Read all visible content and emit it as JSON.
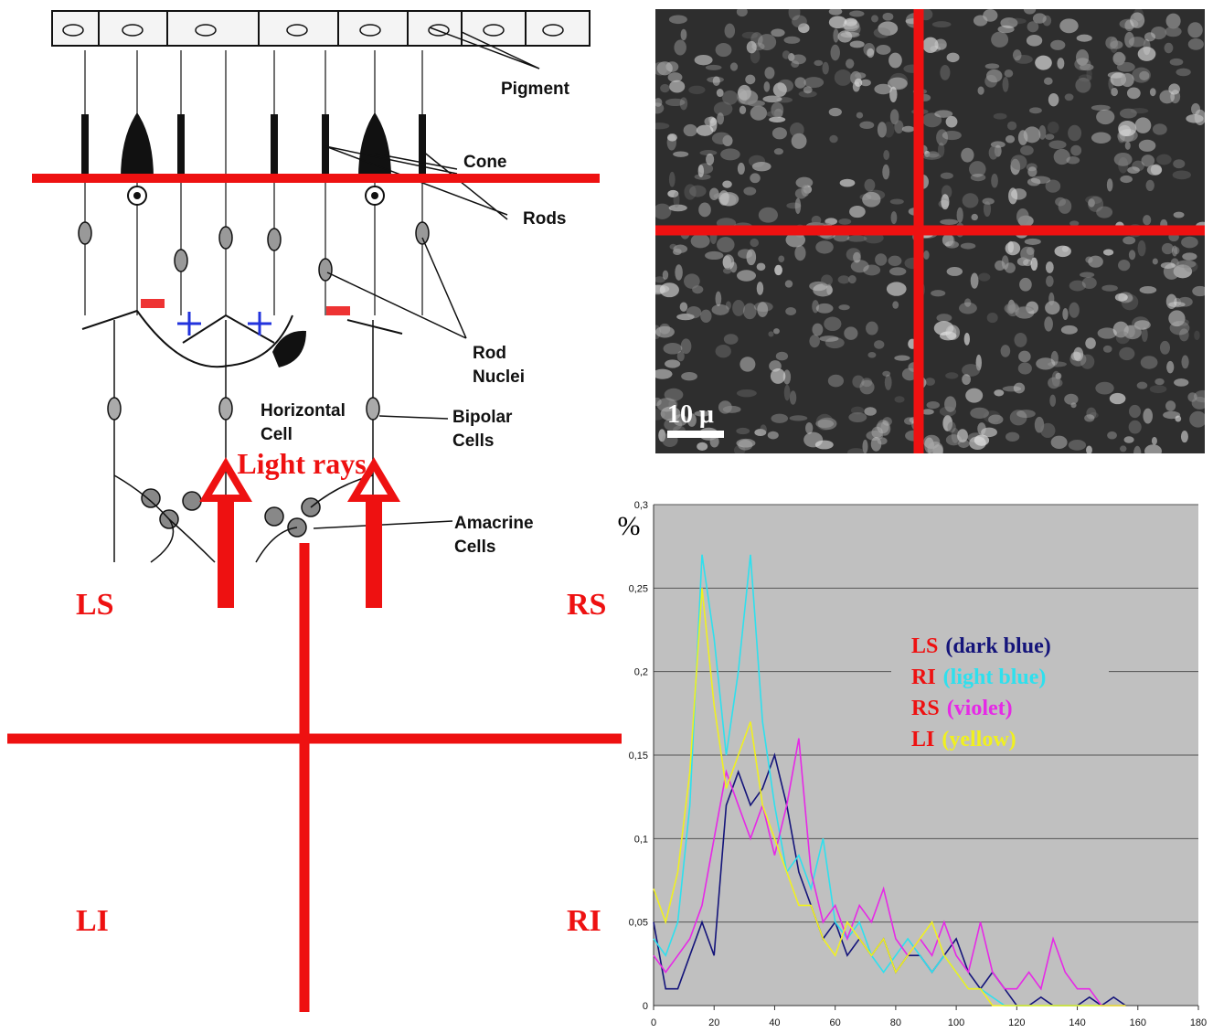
{
  "diagram": {
    "labels": {
      "pigment": "Pigment",
      "cone": "Cone",
      "rods": "Rods",
      "rod_nuclei": [
        "Rod",
        "Nuclei"
      ],
      "horizontal_cell": [
        "Horizontal",
        "Cell"
      ],
      "bipolar_cells": [
        "Bipolar",
        "Cells"
      ],
      "amacrine_cells": [
        "Amacrine",
        "Cells"
      ],
      "light_rays": "Light rays"
    },
    "quadrants": {
      "ls": "LS",
      "rs": "RS",
      "li": "LI",
      "ri": "RI"
    }
  },
  "micrograph": {
    "scale_label": "10 μ"
  },
  "chart_data": {
    "type": "line",
    "y_label": "%",
    "x": [
      0,
      4,
      8,
      12,
      16,
      20,
      24,
      28,
      32,
      36,
      40,
      44,
      48,
      52,
      56,
      60,
      64,
      68,
      72,
      76,
      80,
      84,
      88,
      92,
      96,
      100,
      104,
      108,
      112,
      116,
      120,
      124,
      128,
      132,
      136,
      140,
      144,
      148,
      152,
      156
    ],
    "xlim": [
      0,
      180
    ],
    "xticks": [
      0,
      20,
      40,
      60,
      80,
      100,
      120,
      140,
      160,
      180
    ],
    "ylim": [
      0,
      0.3
    ],
    "yticks": [
      0,
      {
        "value": 0.05,
        "label": "0,05"
      },
      {
        "value": 0.1,
        "label": "0,1"
      },
      {
        "value": 0.15,
        "label": "0,15"
      },
      {
        "value": 0.2,
        "label": "0,2"
      },
      {
        "value": 0.25,
        "label": "0,25"
      },
      {
        "value": 0.3,
        "label": "0,3"
      }
    ],
    "grid": true,
    "series": [
      {
        "name": "LS",
        "legend_note": "(dark blue)",
        "color": "#14147a",
        "values": [
          0.05,
          0.01,
          0.01,
          0.03,
          0.05,
          0.03,
          0.12,
          0.14,
          0.12,
          0.13,
          0.15,
          0.12,
          0.08,
          0.06,
          0.04,
          0.05,
          0.03,
          0.04,
          0.03,
          0.04,
          0.02,
          0.03,
          0.03,
          0.02,
          0.03,
          0.04,
          0.02,
          0.01,
          0.02,
          0.01,
          0,
          0,
          0.005,
          0,
          0,
          0,
          0.005,
          0,
          0.005,
          0
        ]
      },
      {
        "name": "RI",
        "legend_note": "(light blue)",
        "color": "#2ee0ee",
        "values": [
          0.04,
          0.03,
          0.05,
          0.12,
          0.27,
          0.22,
          0.15,
          0.2,
          0.27,
          0.17,
          0.12,
          0.08,
          0.09,
          0.07,
          0.1,
          0.05,
          0.04,
          0.05,
          0.03,
          0.02,
          0.03,
          0.04,
          0.03,
          0.02,
          0.03,
          0.02,
          0.01,
          0.01,
          0.005,
          0,
          0,
          0,
          0,
          0,
          0,
          0,
          0,
          0,
          0,
          0
        ]
      },
      {
        "name": "RS",
        "legend_note": "(violet)",
        "color": "#e629e6",
        "values": [
          0.03,
          0.02,
          0.03,
          0.04,
          0.06,
          0.1,
          0.14,
          0.12,
          0.1,
          0.12,
          0.09,
          0.12,
          0.16,
          0.08,
          0.05,
          0.06,
          0.04,
          0.06,
          0.05,
          0.07,
          0.04,
          0.03,
          0.04,
          0.03,
          0.05,
          0.03,
          0.02,
          0.05,
          0.02,
          0.01,
          0.01,
          0.02,
          0.01,
          0.04,
          0.02,
          0.01,
          0.01,
          0,
          0,
          0
        ]
      },
      {
        "name": "LI",
        "legend_note": "(yellow)",
        "color": "#f0f020",
        "values": [
          0.07,
          0.05,
          0.08,
          0.14,
          0.25,
          0.18,
          0.13,
          0.15,
          0.17,
          0.12,
          0.1,
          0.08,
          0.06,
          0.06,
          0.04,
          0.03,
          0.05,
          0.04,
          0.03,
          0.04,
          0.02,
          0.03,
          0.04,
          0.05,
          0.03,
          0.02,
          0.01,
          0.01,
          0,
          0,
          0,
          0,
          0,
          0,
          0,
          0,
          0,
          0,
          0,
          0
        ]
      }
    ]
  }
}
